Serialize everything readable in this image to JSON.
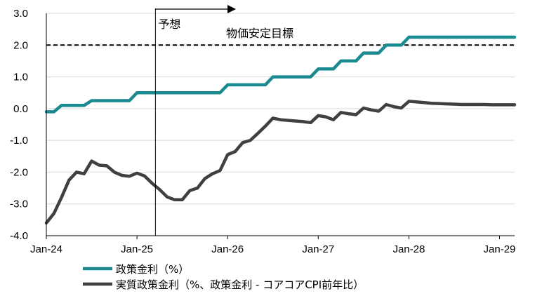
{
  "chart_data": {
    "type": "line",
    "y_axis": {
      "ylim": [
        -4.0,
        3.0
      ],
      "ticks": [
        {
          "value": 3.0,
          "label": "3.0"
        },
        {
          "value": 2.0,
          "label": "2.0"
        },
        {
          "value": 1.0,
          "label": "1.0"
        },
        {
          "value": 0.0,
          "label": "0.0"
        },
        {
          "value": -1.0,
          "label": "-1.0"
        },
        {
          "value": -2.0,
          "label": "-2.0"
        },
        {
          "value": -3.0,
          "label": "-3.0"
        },
        {
          "value": -4.0,
          "label": "-4.0"
        }
      ],
      "negative_label_color": "#e00000"
    },
    "x_axis": {
      "xlim": [
        "2024-01",
        "2029-03"
      ],
      "ticks": [
        {
          "date": "2024-01",
          "label": "Jan-24"
        },
        {
          "date": "2025-01",
          "label": "Jan-25"
        },
        {
          "date": "2026-01",
          "label": "Jan-26"
        },
        {
          "date": "2027-01",
          "label": "Jan-27"
        },
        {
          "date": "2028-01",
          "label": "Jan-28"
        },
        {
          "date": "2029-01",
          "label": "Jan-29"
        }
      ]
    },
    "annotations": {
      "forecast_label": "予想",
      "forecast_start": "2025-04",
      "target_label": "物価安定目標",
      "target_value": 2.0
    },
    "series": [
      {
        "name": "政策金利（%）",
        "color": "#1a8a91",
        "points": [
          [
            "2024-01",
            -0.1
          ],
          [
            "2024-02",
            -0.1
          ],
          [
            "2024-03",
            0.1
          ],
          [
            "2024-04",
            0.1
          ],
          [
            "2024-05",
            0.1
          ],
          [
            "2024-06",
            0.1
          ],
          [
            "2024-07",
            0.25
          ],
          [
            "2024-08",
            0.25
          ],
          [
            "2024-09",
            0.25
          ],
          [
            "2024-10",
            0.25
          ],
          [
            "2024-11",
            0.25
          ],
          [
            "2024-12",
            0.25
          ],
          [
            "2025-01",
            0.5
          ],
          [
            "2025-02",
            0.5
          ],
          [
            "2025-03",
            0.5
          ],
          [
            "2025-04",
            0.5
          ],
          [
            "2025-05",
            0.5
          ],
          [
            "2025-06",
            0.5
          ],
          [
            "2025-07",
            0.5
          ],
          [
            "2025-08",
            0.5
          ],
          [
            "2025-09",
            0.5
          ],
          [
            "2025-10",
            0.5
          ],
          [
            "2025-11",
            0.5
          ],
          [
            "2025-12",
            0.5
          ],
          [
            "2026-01",
            0.75
          ],
          [
            "2026-02",
            0.75
          ],
          [
            "2026-03",
            0.75
          ],
          [
            "2026-04",
            0.75
          ],
          [
            "2026-05",
            0.75
          ],
          [
            "2026-06",
            0.75
          ],
          [
            "2026-07",
            1.0
          ],
          [
            "2026-08",
            1.0
          ],
          [
            "2026-09",
            1.0
          ],
          [
            "2026-10",
            1.0
          ],
          [
            "2026-11",
            1.0
          ],
          [
            "2026-12",
            1.0
          ],
          [
            "2027-01",
            1.25
          ],
          [
            "2027-02",
            1.25
          ],
          [
            "2027-03",
            1.25
          ],
          [
            "2027-04",
            1.5
          ],
          [
            "2027-05",
            1.5
          ],
          [
            "2027-06",
            1.5
          ],
          [
            "2027-07",
            1.75
          ],
          [
            "2027-08",
            1.75
          ],
          [
            "2027-09",
            1.75
          ],
          [
            "2027-10",
            2.0
          ],
          [
            "2027-11",
            2.0
          ],
          [
            "2027-12",
            2.0
          ],
          [
            "2028-01",
            2.25
          ],
          [
            "2028-02",
            2.25
          ],
          [
            "2028-03",
            2.25
          ],
          [
            "2028-04",
            2.25
          ],
          [
            "2028-05",
            2.25
          ],
          [
            "2028-06",
            2.25
          ],
          [
            "2028-07",
            2.25
          ],
          [
            "2028-08",
            2.25
          ],
          [
            "2028-09",
            2.25
          ],
          [
            "2028-10",
            2.25
          ],
          [
            "2028-11",
            2.25
          ],
          [
            "2028-12",
            2.25
          ],
          [
            "2029-01",
            2.25
          ],
          [
            "2029-02",
            2.25
          ],
          [
            "2029-03",
            2.25
          ]
        ]
      },
      {
        "name": "実質政策金利（%、政策金利 - コアコアCPI前年比）",
        "color": "#404040",
        "points": [
          [
            "2024-01",
            -3.6
          ],
          [
            "2024-02",
            -3.3
          ],
          [
            "2024-03",
            -2.8
          ],
          [
            "2024-04",
            -2.25
          ],
          [
            "2024-05",
            -2.0
          ],
          [
            "2024-06",
            -2.05
          ],
          [
            "2024-07",
            -1.65
          ],
          [
            "2024-08",
            -1.78
          ],
          [
            "2024-09",
            -1.8
          ],
          [
            "2024-10",
            -2.0
          ],
          [
            "2024-11",
            -2.1
          ],
          [
            "2024-12",
            -2.13
          ],
          [
            "2025-01",
            -2.03
          ],
          [
            "2025-02",
            -2.12
          ],
          [
            "2025-03",
            -2.35
          ],
          [
            "2025-04",
            -2.55
          ],
          [
            "2025-05",
            -2.78
          ],
          [
            "2025-06",
            -2.87
          ],
          [
            "2025-07",
            -2.87
          ],
          [
            "2025-08",
            -2.58
          ],
          [
            "2025-09",
            -2.5
          ],
          [
            "2025-10",
            -2.2
          ],
          [
            "2025-11",
            -2.05
          ],
          [
            "2025-12",
            -1.95
          ],
          [
            "2026-01",
            -1.45
          ],
          [
            "2026-02",
            -1.35
          ],
          [
            "2026-03",
            -1.07
          ],
          [
            "2026-04",
            -1.0
          ],
          [
            "2026-05",
            -0.78
          ],
          [
            "2026-06",
            -0.55
          ],
          [
            "2026-07",
            -0.3
          ],
          [
            "2026-08",
            -0.35
          ],
          [
            "2026-09",
            -0.37
          ],
          [
            "2026-10",
            -0.39
          ],
          [
            "2026-11",
            -0.41
          ],
          [
            "2026-12",
            -0.44
          ],
          [
            "2027-01",
            -0.22
          ],
          [
            "2027-02",
            -0.26
          ],
          [
            "2027-03",
            -0.35
          ],
          [
            "2027-04",
            -0.12
          ],
          [
            "2027-05",
            -0.16
          ],
          [
            "2027-06",
            -0.19
          ],
          [
            "2027-07",
            0.02
          ],
          [
            "2027-08",
            -0.04
          ],
          [
            "2027-09",
            -0.08
          ],
          [
            "2027-10",
            0.13
          ],
          [
            "2027-11",
            0.06
          ],
          [
            "2027-12",
            0.02
          ],
          [
            "2028-01",
            0.23
          ],
          [
            "2028-02",
            0.21
          ],
          [
            "2028-03",
            0.19
          ],
          [
            "2028-04",
            0.17
          ],
          [
            "2028-05",
            0.16
          ],
          [
            "2028-06",
            0.15
          ],
          [
            "2028-07",
            0.14
          ],
          [
            "2028-08",
            0.13
          ],
          [
            "2028-09",
            0.13
          ],
          [
            "2028-10",
            0.13
          ],
          [
            "2028-11",
            0.13
          ],
          [
            "2028-12",
            0.12
          ],
          [
            "2029-01",
            0.12
          ],
          [
            "2029-02",
            0.12
          ],
          [
            "2029-03",
            0.12
          ]
        ]
      }
    ]
  }
}
